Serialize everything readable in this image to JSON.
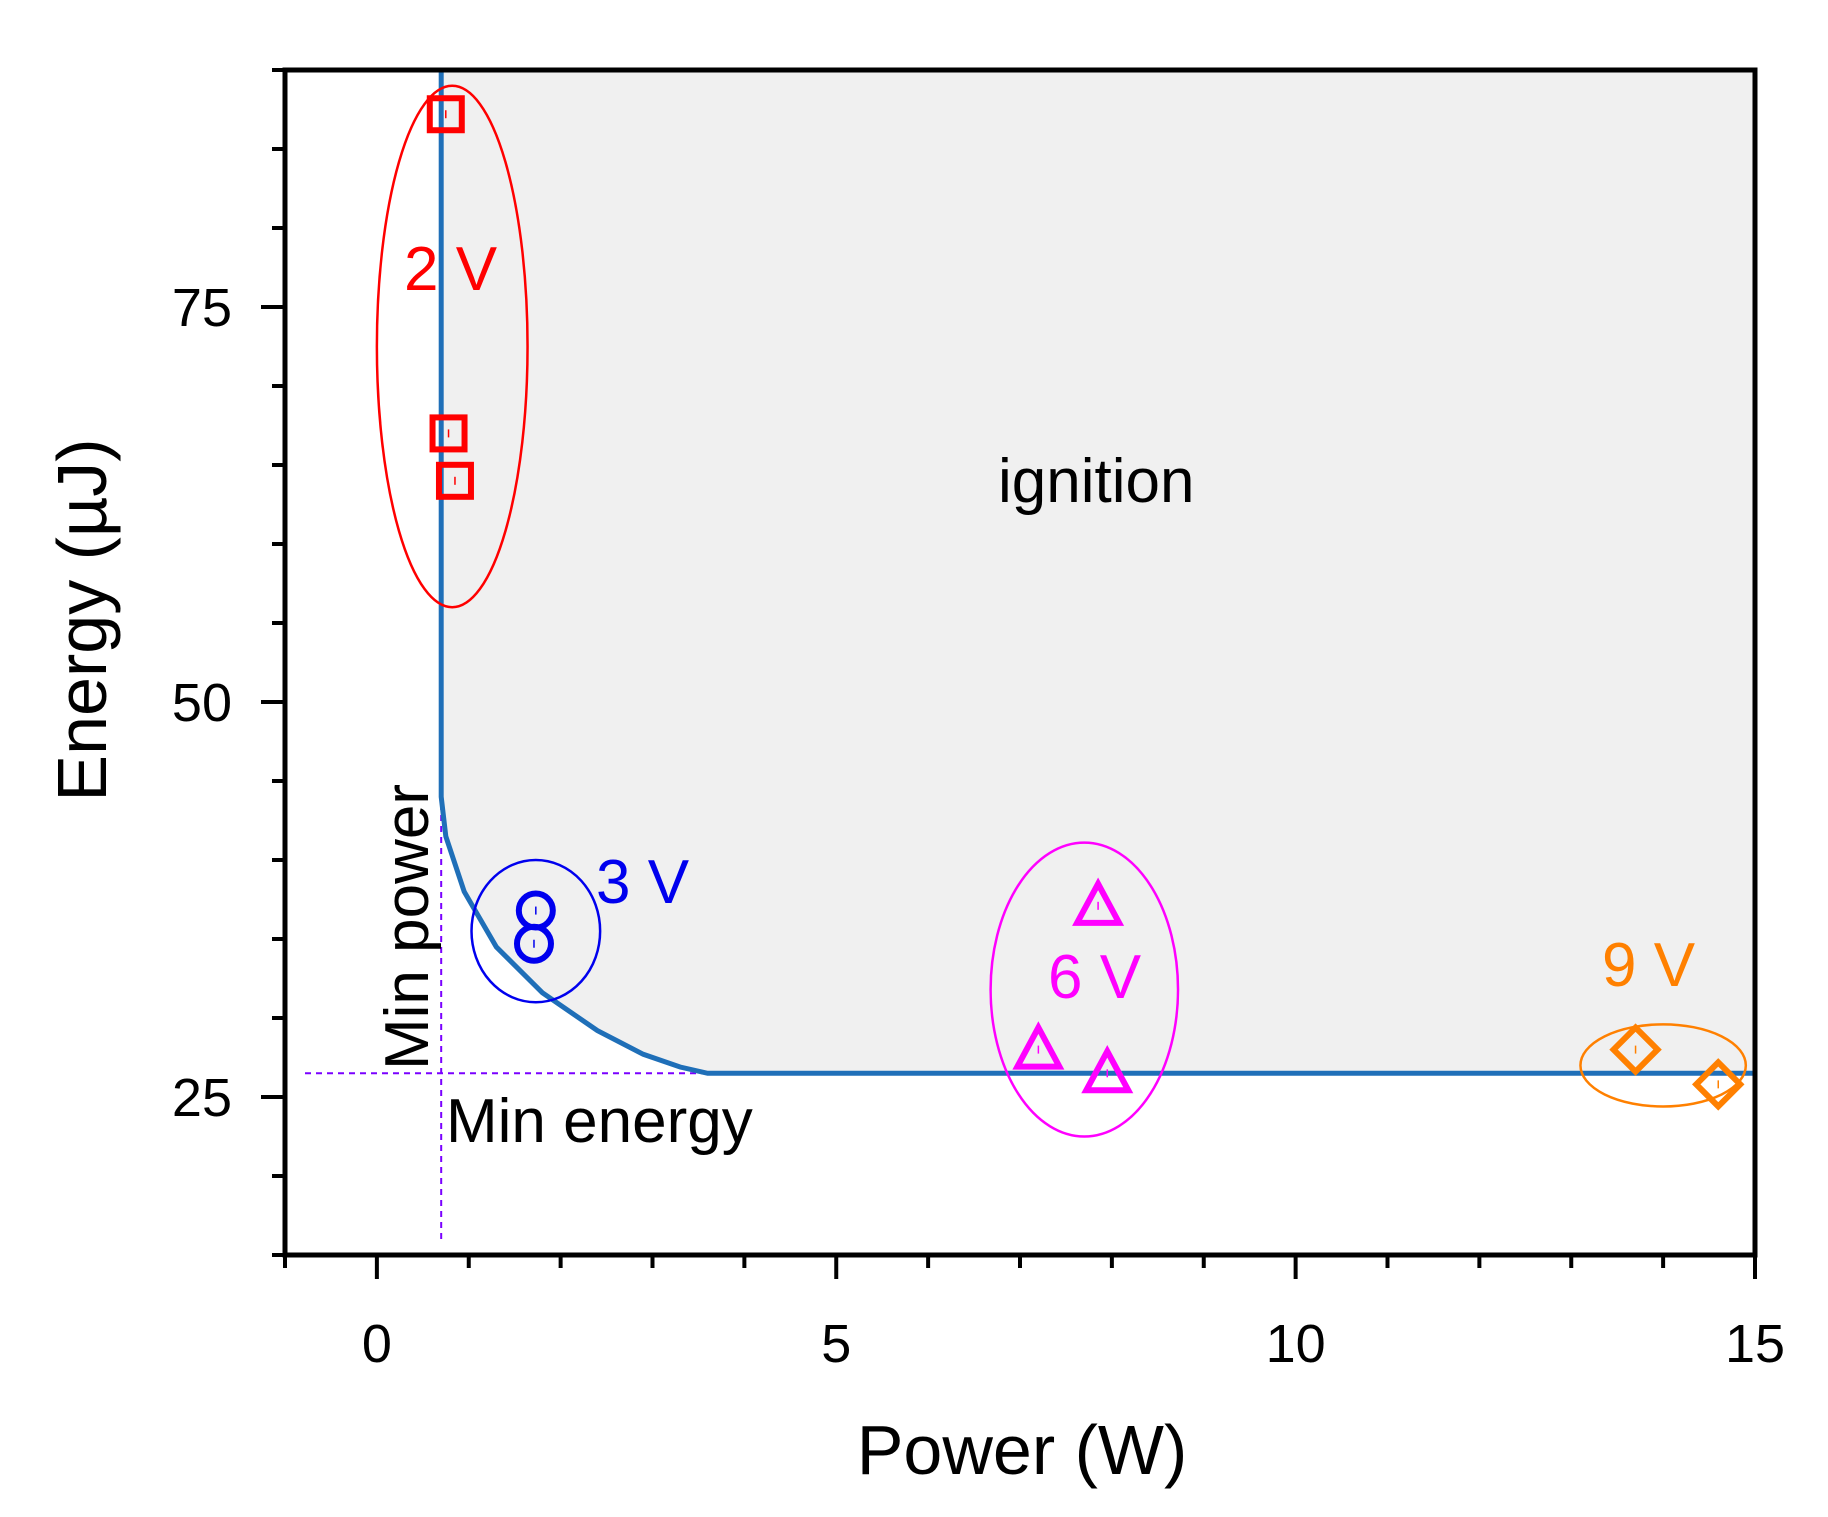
{
  "chart_data": {
    "type": "scatter",
    "xlabel": "Power (W)",
    "ylabel": "Energy (µJ)",
    "xlim": [
      -1,
      15
    ],
    "ylim": [
      15,
      90
    ],
    "xticks": [
      0,
      5,
      10,
      15
    ],
    "xtick_labels": [
      "0",
      "5",
      "10",
      "15"
    ],
    "yticks": [
      25,
      50,
      75
    ],
    "ytick_labels": [
      "25",
      "50",
      "75"
    ],
    "x_minor_step": 1,
    "y_minor_step": 5,
    "grid": false,
    "series": [
      {
        "name": "2 V",
        "label": "2 V",
        "marker": "square",
        "color": "#ff0000",
        "points": [
          [
            0.75,
            87.2
          ],
          [
            0.78,
            67.0
          ],
          [
            0.85,
            64.0
          ]
        ],
        "group_ellipse": {
          "cx": 0.82,
          "cy": 72.5,
          "rx": 0.82,
          "ry": 16.5
        }
      },
      {
        "name": "3 V",
        "label": "3 V",
        "marker": "circle",
        "color": "#0000ee",
        "points": [
          [
            1.73,
            36.8
          ],
          [
            1.71,
            34.7
          ]
        ],
        "group_ellipse": {
          "cx": 1.73,
          "cy": 35.5,
          "rx": 0.7,
          "ry": 4.5
        }
      },
      {
        "name": "6 V",
        "label": "6 V",
        "marker": "triangle",
        "color": "#ff00ff",
        "points": [
          [
            7.85,
            37.1
          ],
          [
            7.2,
            28.0
          ],
          [
            7.95,
            26.5
          ]
        ],
        "group_ellipse": {
          "cx": 7.7,
          "cy": 31.8,
          "rx": 1.02,
          "ry": 9.3
        }
      },
      {
        "name": "9 V",
        "label": "9 V",
        "marker": "diamond",
        "color": "#ff8000",
        "points": [
          [
            13.7,
            28.0
          ],
          [
            14.6,
            25.8
          ]
        ],
        "group_ellipse": {
          "cx": 14.0,
          "cy": 27.0,
          "rx": 0.9,
          "ry": 2.6
        }
      }
    ],
    "threshold_curve": {
      "color": "#1f6fb8",
      "min_power": 0.7,
      "min_energy": 26.5,
      "points": [
        [
          0.7,
          90
        ],
        [
          0.7,
          44
        ],
        [
          0.75,
          41.5
        ],
        [
          0.95,
          38
        ],
        [
          1.3,
          34.5
        ],
        [
          1.8,
          31.6
        ],
        [
          2.4,
          29.2
        ],
        [
          2.9,
          27.7
        ],
        [
          3.3,
          26.9
        ],
        [
          3.6,
          26.5
        ],
        [
          15,
          26.5
        ]
      ]
    },
    "region_label": "ignition",
    "annotations": {
      "min_power": "Min power",
      "min_energy": "Min energy"
    }
  }
}
